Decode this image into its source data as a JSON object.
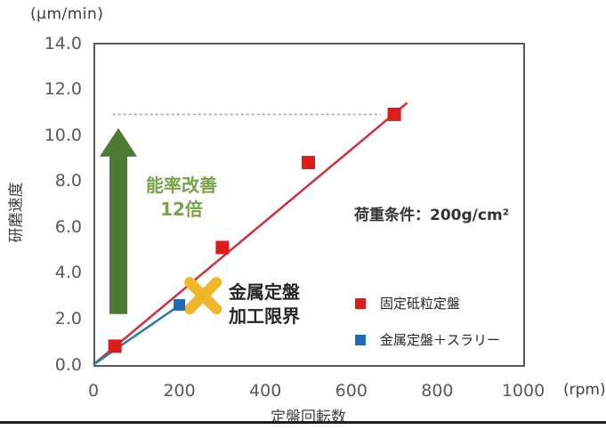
{
  "colors": {
    "red_marker": "#e01b1b",
    "red_line": "#c9383f",
    "blue_marker": "#1e6db4",
    "blue_line": "#2e7f9d",
    "green_arrow": "#4e7a33",
    "green_text": "#79a348",
    "yellow_x": "#f0b62c",
    "axis_border": "#595959",
    "tick_text": "#595959",
    "dashed_line": "#a8a8a8"
  },
  "y_axis": {
    "unit": "(μm/min)",
    "title": "研磨速度",
    "min": 0,
    "max": 14,
    "ticks": [
      {
        "label": "14.0",
        "value": 14
      },
      {
        "label": "12.0",
        "value": 12
      },
      {
        "label": "10.0",
        "value": 10
      },
      {
        "label": "8.0",
        "value": 8
      },
      {
        "label": "6.0",
        "value": 6
      },
      {
        "label": "4.0",
        "value": 4
      },
      {
        "label": "2.0",
        "value": 2
      },
      {
        "label": "0.0",
        "value": 0
      }
    ]
  },
  "x_axis": {
    "unit": "(rpm)",
    "title": "定盤回転数",
    "min": 0,
    "max": 1000,
    "ticks": [
      {
        "label": "0",
        "value": 0
      },
      {
        "label": "200",
        "value": 200
      },
      {
        "label": "400",
        "value": 400
      },
      {
        "label": "600",
        "value": 600
      },
      {
        "label": "800",
        "value": 800
      },
      {
        "label": "1000",
        "value": 1000
      }
    ]
  },
  "chart_data": {
    "type": "scatter",
    "xlabel": "定盤回転数 (rpm)",
    "ylabel": "研磨速度 (μm/min)",
    "xlim": [
      0,
      1000
    ],
    "ylim": [
      0,
      14
    ],
    "grid": false,
    "series": [
      {
        "name": "固定砥粒定盤",
        "marker": "square",
        "color": "#e01b1b",
        "points": [
          [
            50,
            0.8
          ],
          [
            300,
            5.1
          ],
          [
            500,
            8.8
          ],
          [
            700,
            10.9
          ]
        ],
        "trend_line": {
          "from": [
            0,
            0
          ],
          "to": [
            730,
            11.4
          ],
          "color": "#c9383f"
        }
      },
      {
        "name": "金属定盤＋スラリー",
        "marker": "square",
        "color": "#1e6db4",
        "points": [
          [
            200,
            2.6
          ]
        ],
        "trend_line": {
          "from": [
            0,
            0
          ],
          "to": [
            207,
            2.67
          ],
          "color": "#2e7f9d"
        }
      }
    ],
    "annotations": {
      "dashed_reference_line": {
        "y": 10.9,
        "x_from": 45,
        "x_to": 668
      },
      "improvement_arrow": {
        "x": 58,
        "y_from": 2.2,
        "y_to": 10.3
      },
      "improvement_text_line1": "能率改善",
      "improvement_text_line2": "12倍",
      "limit_x_marker": {
        "x": 255,
        "y": 3.0
      },
      "limit_text_line1": "金属定盤",
      "limit_text_line2": "加工限界",
      "load_condition": "荷重条件：200g/cm²"
    }
  },
  "legend": {
    "items": [
      {
        "label": "固定砥粒定盤",
        "color": "#e01b1b"
      },
      {
        "label": "金属定盤＋スラリー",
        "color": "#1e6db4"
      }
    ]
  }
}
